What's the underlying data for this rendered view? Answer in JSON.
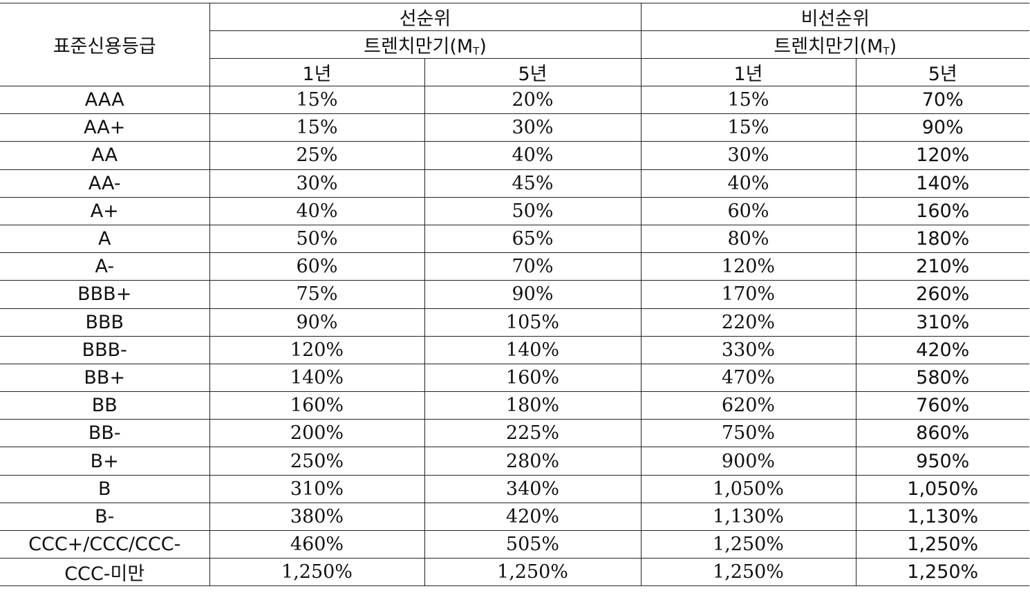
{
  "table": {
    "rating_header": "표준신용등급",
    "groups": [
      {
        "label": "선순위",
        "maturity_label": "트렌치만기(M",
        "maturity_sub": "T",
        "maturity_close": ")",
        "col_1y": "1년",
        "col_5y": "5년"
      },
      {
        "label": "비선순위",
        "maturity_label": "트렌치만기(M",
        "maturity_sub": "T",
        "maturity_close": ")",
        "col_1y": "1년",
        "col_5y": "5년"
      }
    ],
    "rows": [
      [
        "AAA",
        "15%",
        "20%",
        "15%",
        "70%"
      ],
      [
        "AA+",
        "15%",
        "30%",
        "15%",
        "90%"
      ],
      [
        "AA",
        "25%",
        "40%",
        "30%",
        "120%"
      ],
      [
        "AA-",
        "30%",
        "45%",
        "40%",
        "140%"
      ],
      [
        "A+",
        "40%",
        "50%",
        "60%",
        "160%"
      ],
      [
        "A",
        "50%",
        "65%",
        "80%",
        "180%"
      ],
      [
        "A-",
        "60%",
        "70%",
        "120%",
        "210%"
      ],
      [
        "BBB+",
        "75%",
        "90%",
        "170%",
        "260%"
      ],
      [
        "BBB",
        "90%",
        "105%",
        "220%",
        "310%"
      ],
      [
        "BBB-",
        "120%",
        "140%",
        "330%",
        "420%"
      ],
      [
        "BB+",
        "140%",
        "160%",
        "470%",
        "580%"
      ],
      [
        "BB",
        "160%",
        "180%",
        "620%",
        "760%"
      ],
      [
        "BB-",
        "200%",
        "225%",
        "750%",
        "860%"
      ],
      [
        "B+",
        "250%",
        "280%",
        "900%",
        "950%"
      ],
      [
        "B",
        "310%",
        "340%",
        "1,050%",
        "1,050%"
      ],
      [
        "B-",
        "380%",
        "420%",
        "1,130%",
        "1,130%"
      ],
      [
        "CCC+/CCC/CCC-",
        "460%",
        "505%",
        "1,250%",
        "1,250%"
      ],
      [
        "CCC-미만",
        "1,250%",
        "1,250%",
        "1,250%",
        "1,250%"
      ]
    ]
  }
}
